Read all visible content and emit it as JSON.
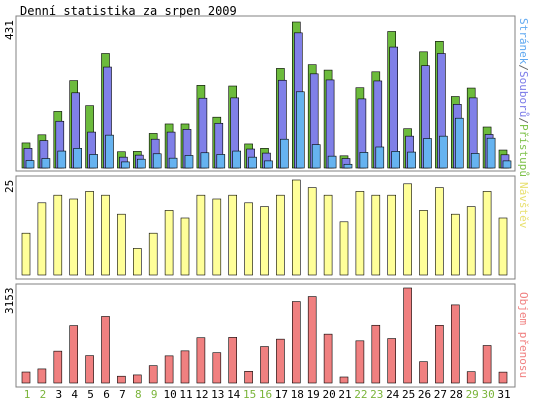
{
  "title": "Denní statistika za srpen 2009",
  "panels": [
    {
      "id": "hits",
      "ymax_label": "431",
      "side_label_parts": [
        {
          "text": "Stránek",
          "color": "#5fa8f0"
        },
        {
          "text": "/",
          "color": "#666666"
        },
        {
          "text": "Souborů",
          "color": "#7a7ae8"
        },
        {
          "text": "/",
          "color": "#666666"
        },
        {
          "text": "Přístupů",
          "color": "#7ec24a"
        }
      ]
    },
    {
      "id": "visits",
      "ymax_label": "25",
      "side_label_parts": [
        {
          "text": "Návštěv",
          "color": "#e8e070"
        }
      ]
    },
    {
      "id": "traffic",
      "ymax_label": "3153",
      "side_label_parts": [
        {
          "text": "Objem přenosu",
          "color": "#f08080"
        }
      ]
    }
  ],
  "colors": {
    "hits": "#6cbb3c",
    "files": "#8080e8",
    "pages": "#66b3f0",
    "visits": "#ffff99",
    "traffic": "#f08080",
    "frame": "#808080",
    "weekend_day": "#7ab43a",
    "weekday_day": "#000000"
  },
  "chart_data": [
    {
      "type": "bar",
      "title": "Stránek/Souborů/Přístupů",
      "categories": [
        "1",
        "2",
        "3",
        "4",
        "5",
        "6",
        "7",
        "8",
        "9",
        "10",
        "11",
        "12",
        "13",
        "14",
        "15",
        "16",
        "17",
        "18",
        "19",
        "20",
        "21",
        "22",
        "23",
        "24",
        "25",
        "26",
        "27",
        "28",
        "29",
        "30",
        "31"
      ],
      "ylim": [
        0,
        431
      ],
      "series": [
        {
          "name": "Přístupů",
          "values": [
            74,
            98,
            167,
            258,
            184,
            338,
            48,
            49,
            102,
            130,
            130,
            244,
            150,
            242,
            71,
            58,
            294,
            431,
            305,
            289,
            36,
            237,
            284,
            403,
            116,
            343,
            374,
            211,
            236,
            121,
            53
          ]
        },
        {
          "name": "Souborů",
          "values": [
            58,
            81,
            138,
            222,
            106,
            298,
            32,
            38,
            85,
            106,
            114,
            206,
            132,
            207,
            56,
            44,
            259,
            399,
            278,
            260,
            28,
            204,
            257,
            357,
            94,
            302,
            338,
            188,
            207,
            99,
            39
          ]
        },
        {
          "name": "Stránek",
          "values": [
            22,
            28,
            50,
            58,
            40,
            97,
            18,
            26,
            42,
            29,
            37,
            45,
            40,
            50,
            32,
            21,
            85,
            225,
            69,
            35,
            11,
            46,
            62,
            49,
            47,
            87,
            94,
            147,
            43,
            88,
            21
          ]
        }
      ]
    },
    {
      "type": "bar",
      "title": "Návštěv",
      "categories": [
        "1",
        "2",
        "3",
        "4",
        "5",
        "6",
        "7",
        "8",
        "9",
        "10",
        "11",
        "12",
        "13",
        "14",
        "15",
        "16",
        "17",
        "18",
        "19",
        "20",
        "21",
        "22",
        "23",
        "24",
        "25",
        "26",
        "27",
        "28",
        "29",
        "30",
        "31"
      ],
      "ylim": [
        0,
        25
      ],
      "series": [
        {
          "name": "Návštěv",
          "values": [
            11,
            19,
            21,
            20,
            22,
            21,
            16,
            7,
            11,
            17,
            15,
            21,
            20,
            21,
            19,
            18,
            21,
            25,
            23,
            21,
            14,
            22,
            21,
            21,
            24,
            17,
            23,
            16,
            18,
            22,
            15
          ]
        }
      ]
    },
    {
      "type": "bar",
      "title": "Objem přenosu",
      "categories": [
        "1",
        "2",
        "3",
        "4",
        "5",
        "6",
        "7",
        "8",
        "9",
        "10",
        "11",
        "12",
        "13",
        "14",
        "15",
        "16",
        "17",
        "18",
        "19",
        "20",
        "21",
        "22",
        "23",
        "24",
        "25",
        "26",
        "27",
        "28",
        "29",
        "30",
        "31"
      ],
      "ylim": [
        0,
        3153
      ],
      "series": [
        {
          "name": "Objem přenosu",
          "values": [
            364,
            467,
            1057,
            1905,
            908,
            2208,
            225,
            268,
            575,
            901,
            1067,
            1503,
            1006,
            1515,
            388,
            1209,
            1455,
            2703,
            2868,
            1621,
            199,
            1400,
            1916,
            1475,
            3153,
            707,
            1915,
            2592,
            376,
            1244,
            361
          ]
        }
      ]
    }
  ],
  "weekend_days": [
    "1",
    "2",
    "8",
    "9",
    "15",
    "16",
    "22",
    "23",
    "29",
    "30"
  ]
}
